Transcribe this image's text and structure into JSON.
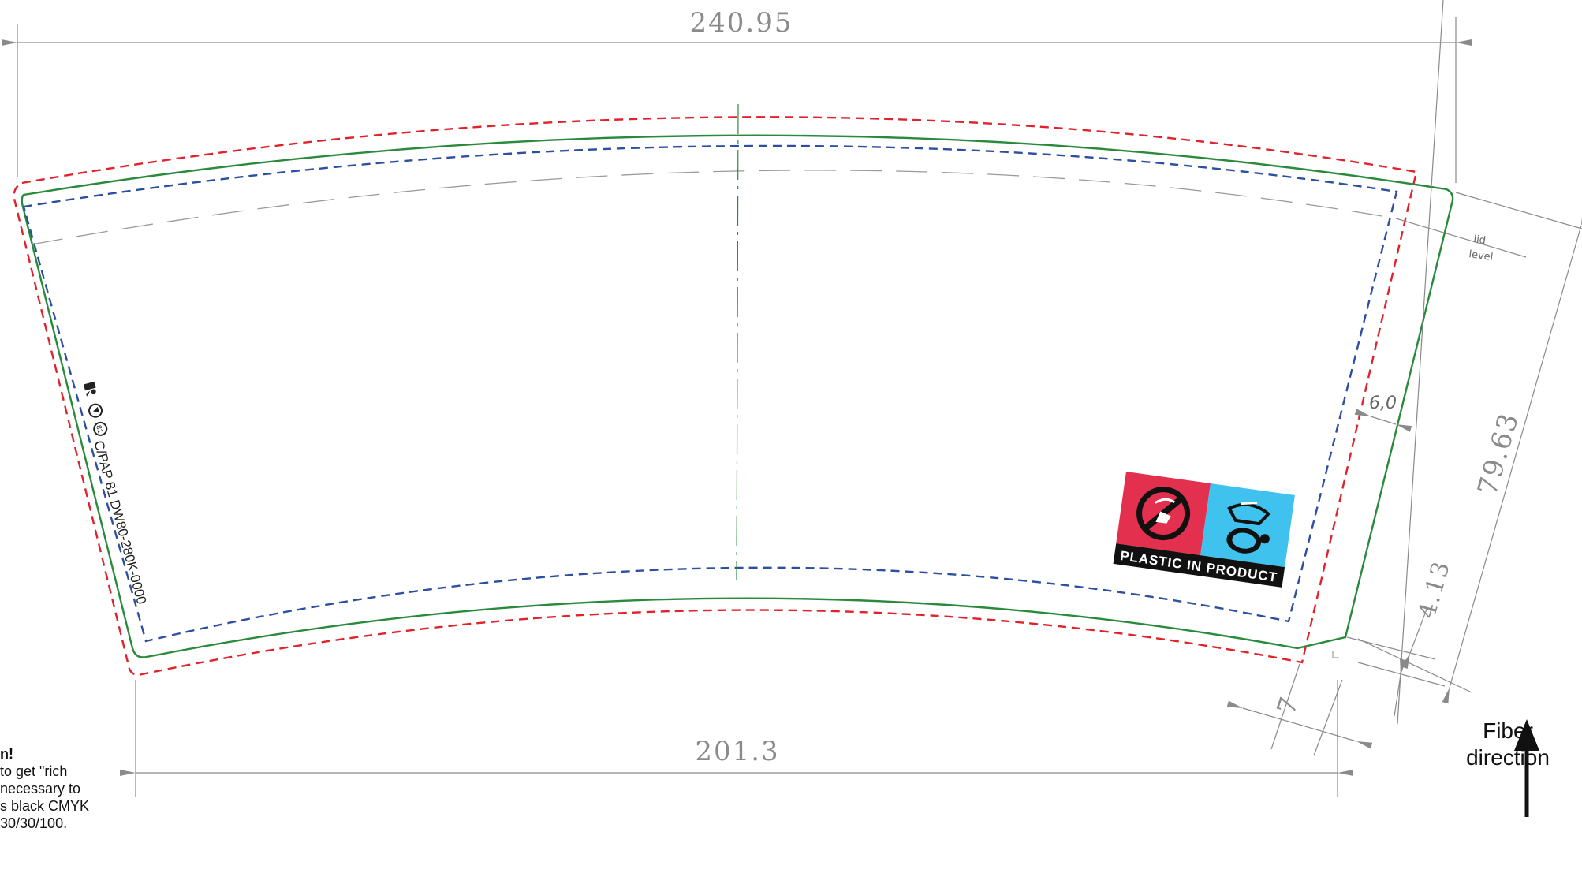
{
  "dimensions": {
    "top_width": "240.95",
    "bottom_width": "201.3",
    "side_height": "79.63",
    "margin_bottom": "4.13",
    "overlap": "7",
    "safety_gap": "6,0"
  },
  "lid_label": {
    "line1": "lid",
    "line2": "level"
  },
  "imprint": {
    "text": "C/PAP 81  DW80-280K-0000",
    "icons": [
      "tidyman-icon",
      "recycle-icon",
      "pap-icon"
    ]
  },
  "plastic_label": {
    "text": "PLASTIC IN PRODUCT",
    "left_color": "#e2304e",
    "right_color": "#3fc3ee"
  },
  "note": {
    "title": "n!",
    "body": "to get \"rich\nnecessary to\ns black CMYK\n30/30/100."
  },
  "fiber": {
    "line1": "Fiber",
    "line2": "direction"
  },
  "colors": {
    "cut_line": "#2a8a3c",
    "bleed_line": "#e0222a",
    "safe_line": "#2d4fa0",
    "dimension_line": "#8a8a8a"
  }
}
